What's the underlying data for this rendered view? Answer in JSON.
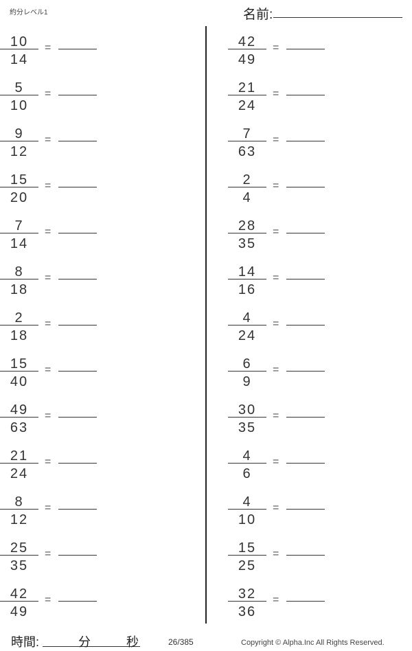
{
  "header": {
    "title": "約分レベル1",
    "name_label": "名前:"
  },
  "problems": {
    "left": [
      {
        "numerator": "10",
        "denominator": "14"
      },
      {
        "numerator": "5",
        "denominator": "10"
      },
      {
        "numerator": "9",
        "denominator": "12"
      },
      {
        "numerator": "15",
        "denominator": "20"
      },
      {
        "numerator": "7",
        "denominator": "14"
      },
      {
        "numerator": "8",
        "denominator": "18"
      },
      {
        "numerator": "2",
        "denominator": "18"
      },
      {
        "numerator": "15",
        "denominator": "40"
      },
      {
        "numerator": "49",
        "denominator": "63"
      },
      {
        "numerator": "21",
        "denominator": "24"
      },
      {
        "numerator": "8",
        "denominator": "12"
      },
      {
        "numerator": "25",
        "denominator": "35"
      },
      {
        "numerator": "42",
        "denominator": "49"
      }
    ],
    "right": [
      {
        "numerator": "42",
        "denominator": "49"
      },
      {
        "numerator": "21",
        "denominator": "24"
      },
      {
        "numerator": "7",
        "denominator": "63"
      },
      {
        "numerator": "2",
        "denominator": "4"
      },
      {
        "numerator": "28",
        "denominator": "35"
      },
      {
        "numerator": "14",
        "denominator": "16"
      },
      {
        "numerator": "4",
        "denominator": "24"
      },
      {
        "numerator": "6",
        "denominator": "9"
      },
      {
        "numerator": "30",
        "denominator": "35"
      },
      {
        "numerator": "4",
        "denominator": "6"
      },
      {
        "numerator": "4",
        "denominator": "10"
      },
      {
        "numerator": "15",
        "denominator": "25"
      },
      {
        "numerator": "32",
        "denominator": "36"
      }
    ],
    "equals": "="
  },
  "footer": {
    "time_label": "時間:",
    "minutes_label": "分",
    "seconds_label": "秒",
    "page": "26/385",
    "copyright": "Copyright ©  Alpha.Inc All Rights Reserved."
  }
}
